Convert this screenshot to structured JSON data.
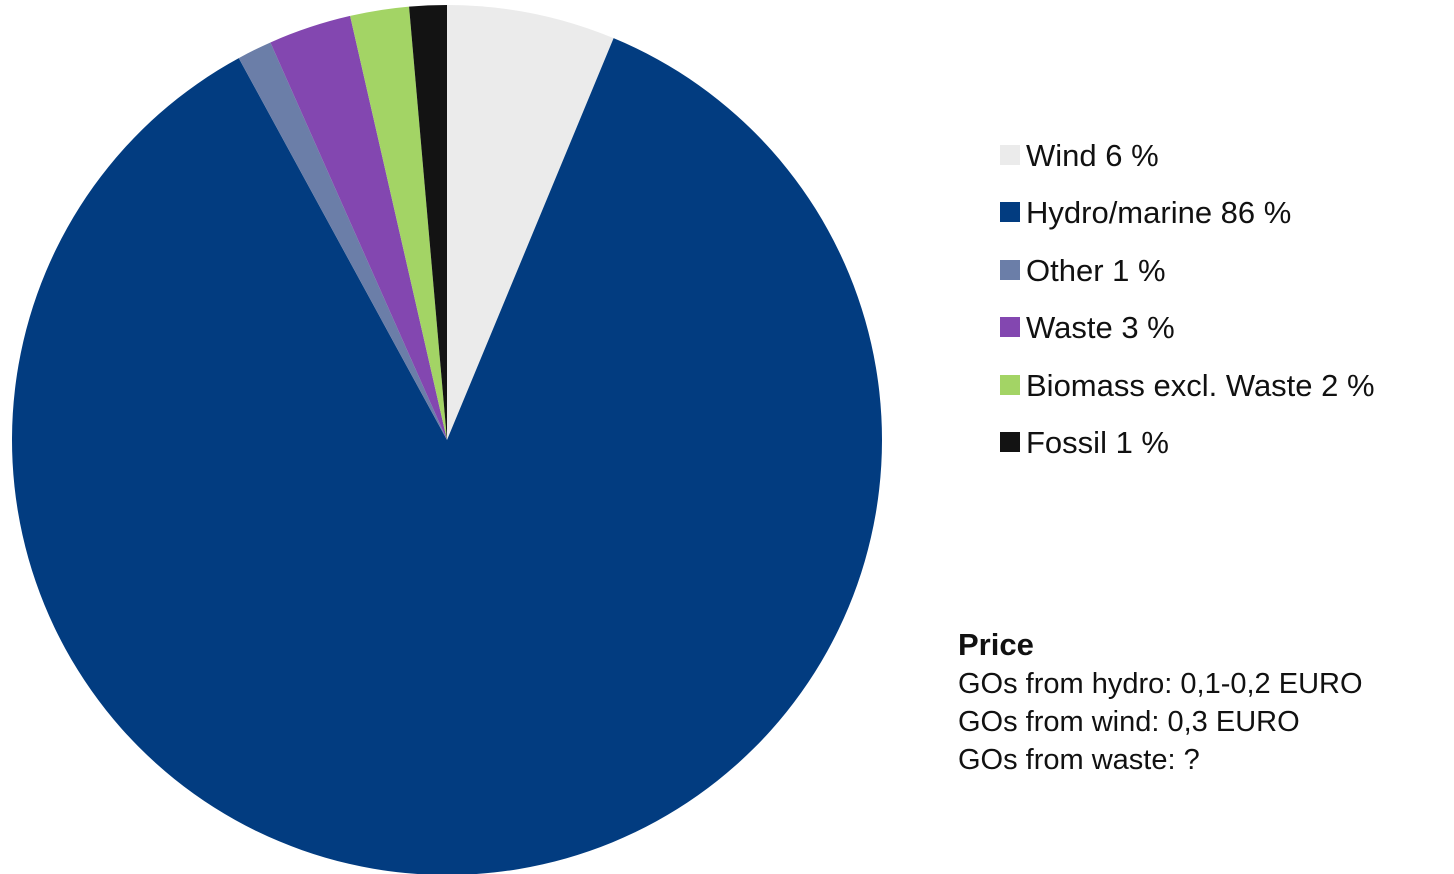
{
  "chart_data": {
    "type": "pie",
    "categories": [
      "Wind",
      "Hydro/marine",
      "Other",
      "Waste",
      "Biomass excl. Waste",
      "Fossil"
    ],
    "values": [
      6.3,
      86.4,
      1.3,
      3.1,
      2.2,
      1.4
    ],
    "legend_labels": [
      "Wind 6 %",
      "Hydro/marine 86 %",
      "Other 1 %",
      "Waste 3 %",
      "Biomass excl. Waste 2 %",
      "Fossil 1 %"
    ],
    "colors": [
      "#ebebeb",
      "#023c80",
      "#6b7ea8",
      "#8347b0",
      "#a3d465",
      "#131313"
    ],
    "legend_position": "right",
    "title": ""
  },
  "price": {
    "title": "Price",
    "lines": [
      "GOs from hydro: 0,1-0,2 EURO",
      "GOs from wind: 0,3 EURO",
      "GOs from waste: ?"
    ]
  }
}
